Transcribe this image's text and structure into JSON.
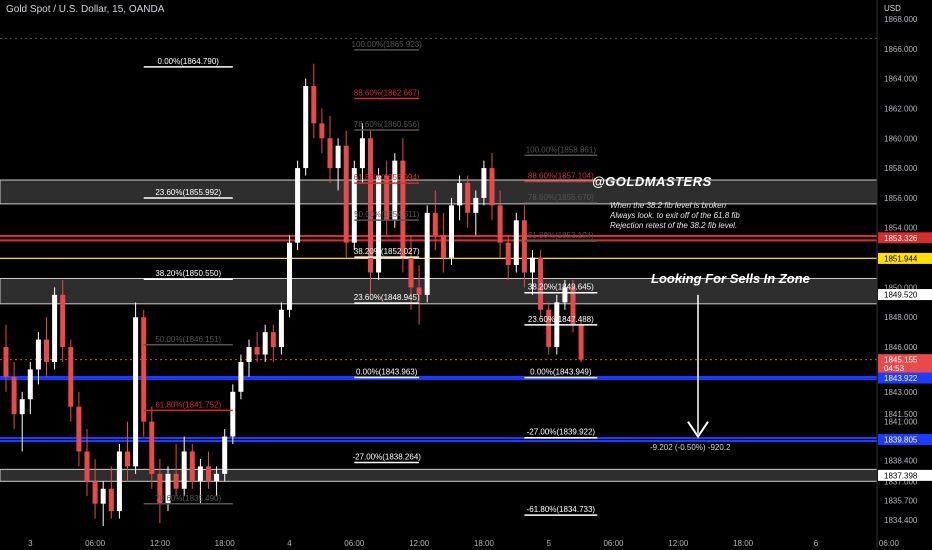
{
  "header": {
    "symbol": "Gold Spot / U.S. Dollar, 15, OANDA",
    "currency": "USD"
  },
  "brand": {
    "text": "@GOLDMASTERS"
  },
  "note": {
    "lines": [
      "When the 38.2 fib level is broken",
      "Always look. to exit off of the 61.8 fib",
      "Rejection retest of the 38.2 fib level."
    ]
  },
  "zone_title": "Looking For Sells In Zone",
  "measure_label": "-9.202 (-0.50%) -920.2",
  "colors": {
    "up": "#ffffff",
    "down": "#e84a4a",
    "red_line": "#d32f2f",
    "blue_line": "#1e3cff",
    "yellow_line": "#ffe000",
    "zone": "#3a3a3a"
  },
  "chart_data": {
    "type": "candlestick",
    "ylim": [
      1833.6,
      1868.6
    ],
    "y_ticks": [
      "1834.400",
      "1835.700",
      "1837.000",
      "1838.400",
      "1839.700",
      "1841.000",
      "1841.500",
      "1843.000",
      "1844.000",
      "1846.000",
      "1848.000",
      "1850.000",
      "1852.000",
      "1854.000",
      "1856.000",
      "1858.000",
      "1860.000",
      "1862.000",
      "1864.000",
      "1866.000",
      "1868.000"
    ],
    "x_ticks": [
      {
        "label": "3",
        "bar": 3
      },
      {
        "label": "06:00",
        "bar": 11
      },
      {
        "label": "12:00",
        "bar": 19
      },
      {
        "label": "18:00",
        "bar": 27
      },
      {
        "label": "4",
        "bar": 35
      },
      {
        "label": "06:00",
        "bar": 43
      },
      {
        "label": "12:00",
        "bar": 51
      },
      {
        "label": "18:00",
        "bar": 59
      },
      {
        "label": "5",
        "bar": 67
      },
      {
        "label": "06:00",
        "bar": 75
      },
      {
        "label": "12:00",
        "bar": 83
      },
      {
        "label": "18:00",
        "bar": 91
      },
      {
        "label": "6",
        "bar": 100
      },
      {
        "label": "06:00",
        "bar": 109
      }
    ],
    "price_badges": [
      {
        "text": "1853.326",
        "value": 1853.326,
        "color": "#d32f2f"
      },
      {
        "text": "1851.944",
        "value": 1851.944,
        "color": "#ffe000",
        "text_color": "#000000"
      },
      {
        "text": "1849.520",
        "value": 1849.52,
        "color": "#ffffff",
        "text_color": "#000000"
      },
      {
        "text": "1845.155",
        "value": 1845.155,
        "color": "#e84a4a"
      },
      {
        "text": "04:53",
        "value": 1844.6,
        "color": "#e84a4a"
      },
      {
        "text": "1843.922",
        "value": 1843.922,
        "color": "#1e3cff"
      },
      {
        "text": "1839.805",
        "value": 1839.805,
        "color": "#1e3cff"
      },
      {
        "text": "1837.398",
        "value": 1837.398,
        "color": "#ffffff",
        "text_color": "#000000"
      }
    ],
    "zones": [
      {
        "from": 1855.6,
        "to": 1857.2
      },
      {
        "from": 1848.9,
        "to": 1850.6
      },
      {
        "from": 1837.0,
        "to": 1837.8
      }
    ],
    "hlines": [
      {
        "value": 1853.45,
        "color": "#d32f2f",
        "width": 2
      },
      {
        "value": 1853.15,
        "color": "#d32f2f",
        "width": 2
      },
      {
        "value": 1851.944,
        "color": "#ffe000",
        "width": 1.2
      },
      {
        "value": 1843.99,
        "color": "#1e3cff",
        "width": 2
      },
      {
        "value": 1843.85,
        "color": "#1e3cff",
        "width": 2
      },
      {
        "value": 1839.9,
        "color": "#1e3cff",
        "width": 2
      },
      {
        "value": 1839.7,
        "color": "#1e3cff",
        "width": 2
      },
      {
        "value": 1845.155,
        "color": "#e84a4a",
        "width": 1,
        "dash": true
      },
      {
        "value": 1866.7,
        "color": "#555555",
        "width": 1,
        "dash": true
      }
    ],
    "fib_labels": [
      {
        "text": "0.00%(1864.790)",
        "value": 1864.79,
        "bar_from": 17,
        "bar_to": 28,
        "color": "#ffffff"
      },
      {
        "text": "23.60%(1855.992)",
        "value": 1855.992,
        "bar_from": 17,
        "bar_to": 28,
        "color": "#ffffff"
      },
      {
        "text": "38.20%(1850.550)",
        "value": 1850.55,
        "bar_from": 17,
        "bar_to": 28,
        "color": "#ffffff"
      },
      {
        "text": "50.00%(1846.151)",
        "value": 1846.151,
        "bar_from": 17,
        "bar_to": 28,
        "color": "#555555"
      },
      {
        "text": "61.80%(1841.752)",
        "value": 1841.752,
        "bar_from": 17,
        "bar_to": 28,
        "color": "#d32f2f"
      },
      {
        "text": "78.60%(1835.490)",
        "value": 1835.49,
        "bar_from": 17,
        "bar_to": 28,
        "color": "#555555"
      },
      {
        "text": "100.00%(1865.923)",
        "value": 1865.923,
        "bar_from": 43,
        "bar_to": 51,
        "color": "#555555"
      },
      {
        "text": "88.60%(1862.667)",
        "value": 1862.667,
        "bar_from": 43,
        "bar_to": 51,
        "color": "#d32f2f"
      },
      {
        "text": "78.60%(1860.556)",
        "value": 1860.556,
        "bar_from": 43,
        "bar_to": 51,
        "color": "#555555"
      },
      {
        "text": "61.80%(1856.994)",
        "value": 1856.994,
        "bar_from": 43,
        "bar_to": 51,
        "color": "#d32f2f"
      },
      {
        "text": "50.00%(1854.511)",
        "value": 1854.511,
        "bar_from": 43,
        "bar_to": 51,
        "color": "#555555"
      },
      {
        "text": "38.20%(1852.027)",
        "value": 1852.027,
        "bar_from": 43,
        "bar_to": 51,
        "color": "#ffffff"
      },
      {
        "text": "23.60%(1848.945)",
        "value": 1848.945,
        "bar_from": 43,
        "bar_to": 51,
        "color": "#ffffff"
      },
      {
        "text": "0.00%(1843.963)",
        "value": 1843.963,
        "bar_from": 43,
        "bar_to": 51,
        "color": "#ffffff"
      },
      {
        "text": "-27.00%(1838.264)",
        "value": 1838.264,
        "bar_from": 43,
        "bar_to": 51,
        "color": "#ffffff"
      },
      {
        "text": "100.00%(1858.861)",
        "value": 1858.861,
        "bar_from": 64,
        "bar_to": 73,
        "color": "#555555"
      },
      {
        "text": "88.60%(1857.104)",
        "value": 1857.104,
        "bar_from": 64,
        "bar_to": 73,
        "color": "#d32f2f"
      },
      {
        "text": "78.60%(1855.670)",
        "value": 1855.67,
        "bar_from": 64,
        "bar_to": 73,
        "color": "#555555"
      },
      {
        "text": "61.80%(1853.104)",
        "value": 1853.104,
        "bar_from": 64,
        "bar_to": 73,
        "color": "#555555"
      },
      {
        "text": "38.20%(1849.645)",
        "value": 1849.645,
        "bar_from": 64,
        "bar_to": 73,
        "color": "#ffffff"
      },
      {
        "text": "23.60%(1847.488)",
        "value": 1847.488,
        "bar_from": 64,
        "bar_to": 73,
        "color": "#ffffff"
      },
      {
        "text": "0.00%(1843.949)",
        "value": 1843.949,
        "bar_from": 64,
        "bar_to": 73,
        "color": "#ffffff"
      },
      {
        "text": "-27.00%(1839.922)",
        "value": 1839.922,
        "bar_from": 64,
        "bar_to": 73,
        "color": "#ffffff"
      },
      {
        "text": "-61.80%(1834.733)",
        "value": 1834.733,
        "bar_from": 64,
        "bar_to": 73,
        "color": "#ffffff"
      }
    ],
    "candles": [
      [
        1846.0,
        1847.5,
        1843.0,
        1844.0
      ],
      [
        1844.0,
        1845.0,
        1840.5,
        1841.5
      ],
      [
        1841.5,
        1843.0,
        1839.0,
        1842.5
      ],
      [
        1842.5,
        1845.0,
        1841.5,
        1844.5
      ],
      [
        1844.5,
        1847.0,
        1843.5,
        1846.5
      ],
      [
        1846.5,
        1848.0,
        1844.0,
        1845.0
      ],
      [
        1845.0,
        1850.0,
        1844.5,
        1849.5
      ],
      [
        1849.5,
        1850.5,
        1845.0,
        1846.0
      ],
      [
        1846.0,
        1846.5,
        1841.0,
        1842.0
      ],
      [
        1842.0,
        1843.0,
        1838.0,
        1839.0
      ],
      [
        1839.0,
        1840.5,
        1836.0,
        1837.0
      ],
      [
        1837.0,
        1838.5,
        1834.5,
        1835.5
      ],
      [
        1835.5,
        1837.0,
        1834.0,
        1836.5
      ],
      [
        1836.5,
        1838.0,
        1834.5,
        1835.0
      ],
      [
        1835.0,
        1839.5,
        1834.5,
        1839.0
      ],
      [
        1839.0,
        1841.0,
        1837.0,
        1838.0
      ],
      [
        1838.0,
        1849.0,
        1837.5,
        1848.0
      ],
      [
        1848.0,
        1848.5,
        1840.0,
        1841.0
      ],
      [
        1841.0,
        1842.0,
        1836.5,
        1837.5
      ],
      [
        1837.5,
        1838.5,
        1834.2,
        1835.5
      ],
      [
        1835.5,
        1838.0,
        1835.0,
        1837.5
      ],
      [
        1837.5,
        1839.5,
        1836.0,
        1836.5
      ],
      [
        1836.5,
        1840.0,
        1836.0,
        1839.0
      ],
      [
        1839.0,
        1839.5,
        1836.5,
        1837.0
      ],
      [
        1837.0,
        1838.5,
        1835.5,
        1838.0
      ],
      [
        1838.0,
        1839.0,
        1836.5,
        1837.0
      ],
      [
        1837.0,
        1838.0,
        1836.0,
        1837.5
      ],
      [
        1837.5,
        1840.5,
        1837.0,
        1840.0
      ],
      [
        1840.0,
        1843.5,
        1839.5,
        1843.0
      ],
      [
        1843.0,
        1845.5,
        1842.5,
        1845.0
      ],
      [
        1845.0,
        1846.5,
        1844.0,
        1846.0
      ],
      [
        1846.0,
        1847.0,
        1845.0,
        1845.5
      ],
      [
        1845.5,
        1847.5,
        1845.0,
        1847.0
      ],
      [
        1847.0,
        1847.5,
        1845.0,
        1846.0
      ],
      [
        1846.0,
        1849.0,
        1845.5,
        1848.5
      ],
      [
        1848.5,
        1853.5,
        1848.0,
        1853.0
      ],
      [
        1853.0,
        1858.5,
        1852.5,
        1858.0
      ],
      [
        1858.0,
        1864.0,
        1857.5,
        1863.5
      ],
      [
        1863.5,
        1865.0,
        1860.0,
        1861.0
      ],
      [
        1861.0,
        1862.0,
        1859.0,
        1860.0
      ],
      [
        1860.0,
        1861.5,
        1857.0,
        1858.0
      ],
      [
        1858.0,
        1860.0,
        1856.5,
        1859.5
      ],
      [
        1859.5,
        1860.5,
        1852.0,
        1853.0
      ],
      [
        1853.0,
        1858.5,
        1852.5,
        1858.0
      ],
      [
        1858.0,
        1861.0,
        1857.0,
        1860.0
      ],
      [
        1860.0,
        1860.5,
        1849.5,
        1851.0
      ],
      [
        1851.0,
        1858.0,
        1850.5,
        1857.5
      ],
      [
        1857.5,
        1858.5,
        1853.5,
        1854.5
      ],
      [
        1854.5,
        1859.0,
        1854.0,
        1858.5
      ],
      [
        1858.5,
        1860.0,
        1851.0,
        1852.0
      ],
      [
        1852.0,
        1853.5,
        1848.5,
        1850.0
      ],
      [
        1850.0,
        1851.5,
        1847.5,
        1849.5
      ],
      [
        1849.5,
        1855.5,
        1849.0,
        1855.0
      ],
      [
        1855.0,
        1856.5,
        1852.5,
        1853.5
      ],
      [
        1853.5,
        1855.0,
        1851.0,
        1852.0
      ],
      [
        1852.0,
        1856.0,
        1851.5,
        1855.5
      ],
      [
        1855.5,
        1857.5,
        1854.5,
        1857.0
      ],
      [
        1857.0,
        1857.5,
        1854.0,
        1855.0
      ],
      [
        1855.0,
        1856.5,
        1853.5,
        1856.0
      ],
      [
        1856.0,
        1858.5,
        1855.5,
        1858.0
      ],
      [
        1858.0,
        1859.0,
        1854.5,
        1855.5
      ],
      [
        1855.5,
        1856.5,
        1852.0,
        1853.0
      ],
      [
        1853.0,
        1853.5,
        1850.5,
        1851.5
      ],
      [
        1851.5,
        1855.0,
        1851.0,
        1854.5
      ],
      [
        1854.5,
        1855.5,
        1850.0,
        1851.0
      ],
      [
        1851.0,
        1852.5,
        1849.5,
        1852.0
      ],
      [
        1852.0,
        1852.5,
        1848.0,
        1848.5
      ],
      [
        1848.5,
        1849.0,
        1845.5,
        1846.0
      ],
      [
        1846.0,
        1849.5,
        1845.5,
        1849.0
      ],
      [
        1849.0,
        1850.5,
        1848.5,
        1850.0
      ],
      [
        1850.0,
        1850.5,
        1847.0,
        1847.5
      ],
      [
        1847.5,
        1848.0,
        1845.0,
        1845.155
      ]
    ]
  }
}
